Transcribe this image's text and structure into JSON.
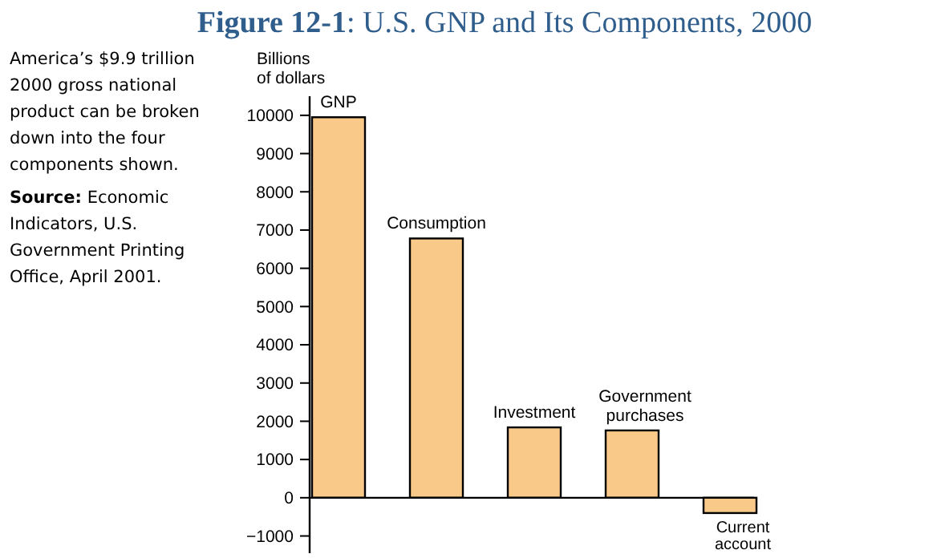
{
  "chart_data": {
    "type": "bar",
    "title": "Figure 12-1: U.S. GNP and Its Components, 2000",
    "ylabel": "Billions of dollars",
    "categories": [
      "GNP",
      "Consumption",
      "Investment",
      "Government purchases",
      "Current account"
    ],
    "values": [
      9950,
      6780,
      1840,
      1760,
      -400
    ],
    "color": "#f9c98a",
    "ylim": [
      -1450,
      10500
    ],
    "yticks": [
      -1000,
      0,
      1000,
      2000,
      3000,
      4000,
      5000,
      6000,
      7000,
      8000,
      9000,
      10000
    ],
    "annotations": [
      "America’s $9.9 trillion 2000 gross national product can be broken down into the four components shown.",
      "Source: Economic Indicators, U.S. Government Printing Office, April 2001."
    ]
  }
}
